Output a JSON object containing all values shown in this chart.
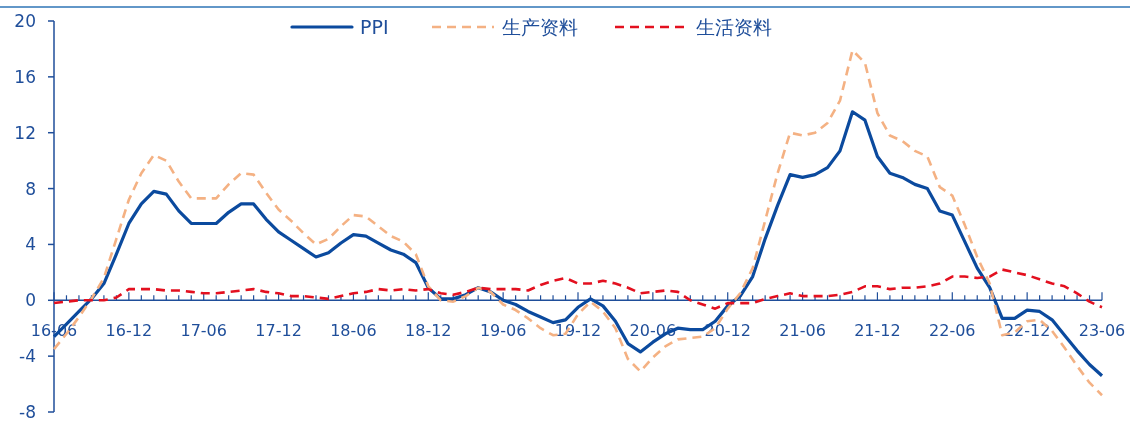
{
  "chart_data": {
    "type": "line",
    "legend": "top",
    "categories": [
      "16-06",
      null,
      null,
      null,
      null,
      null,
      "16-12",
      null,
      null,
      null,
      null,
      null,
      "17-06",
      null,
      null,
      null,
      null,
      null,
      "17-12",
      null,
      null,
      null,
      null,
      null,
      "18-06",
      null,
      null,
      null,
      null,
      null,
      "18-12",
      null,
      null,
      null,
      null,
      null,
      "19-06",
      null,
      null,
      null,
      null,
      null,
      "19-12",
      null,
      null,
      null,
      null,
      null,
      "20-06",
      null,
      null,
      null,
      null,
      null,
      "20-12",
      null,
      null,
      null,
      null,
      null,
      "21-06",
      null,
      null,
      null,
      null,
      null,
      "21-12",
      null,
      null,
      null,
      null,
      null,
      "22-06",
      null,
      null,
      null,
      null,
      null,
      "22-12",
      null,
      null,
      null,
      null,
      null,
      "23-06"
    ],
    "ylim": [
      -8,
      20
    ],
    "yticks": [
      -8,
      -4,
      0,
      4,
      8,
      12,
      16,
      20
    ],
    "series": [
      {
        "name": "PPI",
        "color": "#0b4a9e",
        "line_style": "solid",
        "values": [
          -2.6,
          -1.7,
          -0.8,
          0.1,
          1.2,
          3.3,
          5.5,
          6.9,
          7.8,
          7.6,
          6.4,
          5.5,
          5.5,
          5.5,
          6.3,
          6.9,
          6.9,
          5.8,
          4.9,
          4.3,
          3.7,
          3.1,
          3.4,
          4.1,
          4.7,
          4.6,
          4.1,
          3.6,
          3.3,
          2.7,
          0.9,
          0.1,
          0.1,
          0.4,
          0.9,
          0.6,
          0.0,
          -0.3,
          -0.8,
          -1.2,
          -1.6,
          -1.4,
          -0.5,
          0.1,
          -0.4,
          -1.5,
          -3.1,
          -3.7,
          -3.0,
          -2.4,
          -2.0,
          -2.1,
          -2.1,
          -1.5,
          -0.4,
          0.3,
          1.7,
          4.4,
          6.8,
          9.0,
          8.8,
          9.0,
          9.5,
          10.7,
          13.5,
          12.9,
          10.3,
          9.1,
          8.8,
          8.3,
          8.0,
          6.4,
          6.1,
          4.2,
          2.3,
          0.9,
          -1.3,
          -1.3,
          -0.7,
          -0.8,
          -1.4,
          -2.5,
          -3.6,
          -4.6,
          -5.4
        ]
      },
      {
        "name": "生产资料",
        "color": "#f4b183",
        "line_style": "dashed",
        "values": [
          -3.5,
          -2.4,
          -1.2,
          0.1,
          1.6,
          4.4,
          7.2,
          9.1,
          10.4,
          10.0,
          8.5,
          7.3,
          7.3,
          7.3,
          8.3,
          9.1,
          9.0,
          7.7,
          6.5,
          5.7,
          4.8,
          4.0,
          4.4,
          5.3,
          6.1,
          6.0,
          5.3,
          4.6,
          4.2,
          3.3,
          1.0,
          0.0,
          -0.1,
          0.3,
          0.9,
          0.6,
          -0.3,
          -0.7,
          -1.3,
          -2.0,
          -2.5,
          -2.4,
          -1.0,
          -0.1,
          -0.8,
          -2.0,
          -4.2,
          -5.1,
          -4.1,
          -3.3,
          -2.8,
          -2.7,
          -2.6,
          -2.0,
          -0.6,
          0.5,
          2.3,
          5.7,
          9.1,
          12.0,
          11.8,
          12.0,
          12.7,
          14.3,
          17.9,
          17.0,
          13.4,
          11.8,
          11.4,
          10.7,
          10.3,
          8.1,
          7.5,
          5.4,
          3.1,
          1.2,
          -2.5,
          -2.3,
          -1.5,
          -1.4,
          -2.2,
          -3.4,
          -4.7,
          -5.9,
          -6.8
        ]
      },
      {
        "name": "生活资料",
        "color": "#e3101f",
        "line_style": "dashed",
        "values": [
          -0.2,
          -0.1,
          0.0,
          0.0,
          0.0,
          0.2,
          0.8,
          0.8,
          0.8,
          0.7,
          0.7,
          0.6,
          0.5,
          0.5,
          0.6,
          0.7,
          0.8,
          0.6,
          0.5,
          0.3,
          0.3,
          0.2,
          0.1,
          0.3,
          0.5,
          0.6,
          0.8,
          0.7,
          0.8,
          0.7,
          0.8,
          0.5,
          0.4,
          0.6,
          0.9,
          0.8,
          0.8,
          0.8,
          0.7,
          1.1,
          1.4,
          1.6,
          1.2,
          1.2,
          1.4,
          1.2,
          0.9,
          0.5,
          0.6,
          0.7,
          0.6,
          0.0,
          -0.3,
          -0.6,
          -0.2,
          -0.2,
          -0.2,
          0.1,
          0.3,
          0.5,
          0.3,
          0.3,
          0.3,
          0.4,
          0.6,
          1.0,
          1.0,
          0.8,
          0.9,
          0.9,
          1.0,
          1.2,
          1.7,
          1.7,
          1.6,
          1.7,
          2.2,
          2.0,
          1.8,
          1.5,
          1.2,
          1.0,
          0.5,
          -0.1,
          -0.5
        ]
      }
    ]
  }
}
